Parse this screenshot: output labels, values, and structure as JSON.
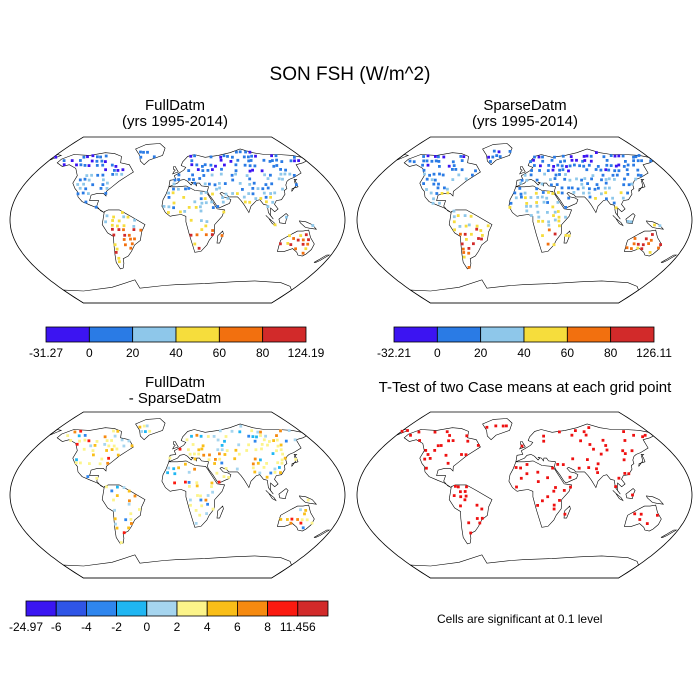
{
  "main_title": "SON FSH (W/m^2)",
  "chart_data": [
    {
      "type": "map",
      "title": "FullDatm",
      "subtitle": "(yrs 1995-2014)",
      "colorbar": {
        "colors": [
          "#3c14f2",
          "#2a7be5",
          "#8ec7ea",
          "#f6dd3c",
          "#f2700f",
          "#d22a2a"
        ],
        "labels": [
          "-31.27",
          "0",
          "20",
          "40",
          "60",
          "80",
          "124.19"
        ]
      }
    },
    {
      "type": "map",
      "title": "SparseDatm",
      "subtitle": "(yrs 1995-2014)",
      "colorbar": {
        "colors": [
          "#3c14f2",
          "#2a7be5",
          "#8ec7ea",
          "#f6dd3c",
          "#f2700f",
          "#d22a2a"
        ],
        "labels": [
          "-32.21",
          "0",
          "20",
          "40",
          "60",
          "80",
          "126.11"
        ]
      }
    },
    {
      "type": "map",
      "title": "FullDatm",
      "subtitle": "- SparseDatm",
      "colorbar": {
        "colors": [
          "#3a16f2",
          "#2f55e6",
          "#2f86ee",
          "#20b6f2",
          "#a6d5ef",
          "#fcf48a",
          "#f9be18",
          "#f68a10",
          "#fb1a10",
          "#d22a2a"
        ],
        "labels": [
          "-24.97",
          "-6",
          "-4",
          "-2",
          "0",
          "2",
          "4",
          "6",
          "8",
          "11.456"
        ]
      }
    },
    {
      "type": "map",
      "title": "T-Test of two Case means at each grid point",
      "subtitle": "",
      "note": "Cells are significant at 0.1 level",
      "significance_color": "#ee1111"
    }
  ]
}
